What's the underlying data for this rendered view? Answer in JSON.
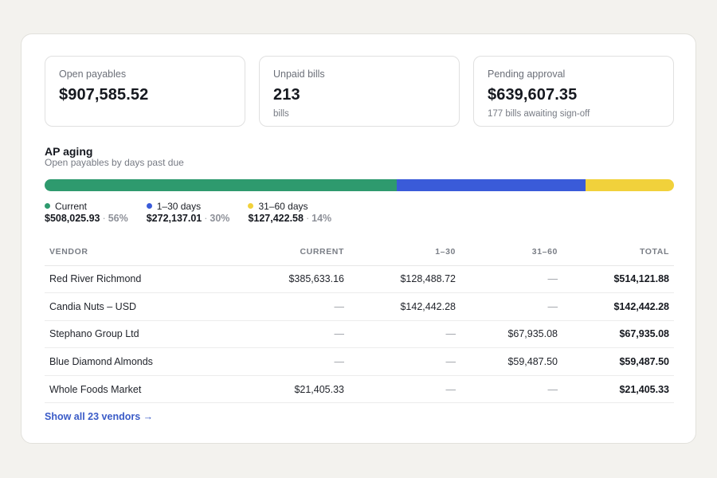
{
  "summary_cards": [
    {
      "label": "Open payables",
      "value": "$907,585.52",
      "sub": ""
    },
    {
      "label": "Unpaid bills",
      "value": "213",
      "sub": "bills"
    },
    {
      "label": "Pending approval",
      "value": "$639,607.35",
      "sub": "177 bills awaiting sign-off"
    }
  ],
  "aging": {
    "title": "AP aging",
    "subtitle": "Open payables by days past due",
    "buckets": [
      {
        "label": "Current",
        "amount": "$508,025.93",
        "pct_label": "56%",
        "share": 0.56,
        "color": "#2e9a6e"
      },
      {
        "label": "1–30 days",
        "amount": "$272,137.01",
        "pct_label": "30%",
        "share": 0.3,
        "color": "#3a5bd9"
      },
      {
        "label": "31–60 days",
        "amount": "$127,422.58",
        "pct_label": "14%",
        "share": 0.14,
        "color": "#f1d13b"
      }
    ],
    "separator": "·"
  },
  "table": {
    "headers": [
      "VENDOR",
      "CURRENT",
      "1–30",
      "31–60",
      "TOTAL"
    ],
    "rows": [
      {
        "vendor": "Red River Richmond",
        "current": "$385,633.16",
        "d1_30": "$128,488.72",
        "d31_60": "—",
        "total": "$514,121.88"
      },
      {
        "vendor": "Candia Nuts – USD",
        "current": "—",
        "d1_30": "$142,442.28",
        "d31_60": "—",
        "total": "$142,442.28"
      },
      {
        "vendor": "Stephano Group Ltd",
        "current": "—",
        "d1_30": "—",
        "d31_60": "$67,935.08",
        "total": "$67,935.08"
      },
      {
        "vendor": "Blue Diamond Almonds",
        "current": "—",
        "d1_30": "—",
        "d31_60": "$59,487.50",
        "total": "$59,487.50"
      },
      {
        "vendor": "Whole Foods Market",
        "current": "$21,405.33",
        "d1_30": "—",
        "d31_60": "—",
        "total": "$21,405.33"
      }
    ]
  },
  "show_all_label": "Show all 23 vendors →"
}
